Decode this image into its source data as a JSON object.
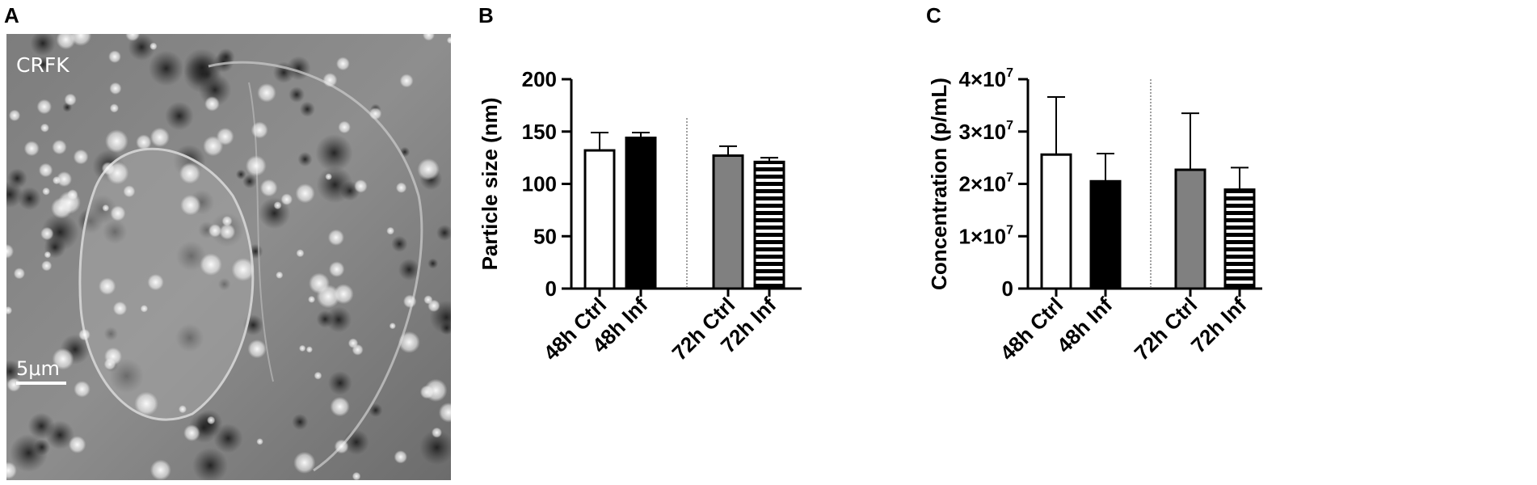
{
  "panels": {
    "a": {
      "letter": "A",
      "image_label": "CRFK",
      "scale_label": "5μm"
    },
    "b": {
      "letter": "B"
    },
    "c": {
      "letter": "C"
    }
  },
  "colors": {
    "ctrl48": "#ffffff",
    "inf48": "#000000",
    "ctrl72": "#808080",
    "inf72_stripe": "#000000",
    "axis": "#000000",
    "divider": "#808080"
  },
  "chart_data": [
    {
      "panel": "B",
      "type": "bar",
      "ylabel": "Particle size (nm)",
      "xlabel": "",
      "ylim": [
        0,
        200
      ],
      "yticks": [
        0,
        50,
        100,
        150,
        200
      ],
      "ytick_labels": [
        "0",
        "50",
        "100",
        "150",
        "200"
      ],
      "categories": [
        "48h Ctrl",
        "48h Inf",
        "72h Ctrl",
        "72h Inf"
      ],
      "values": [
        132,
        144,
        127,
        121
      ],
      "errors": [
        17,
        5,
        9,
        4
      ],
      "fills": [
        "white",
        "black",
        "gray",
        "striped"
      ],
      "divider_between": [
        1,
        2
      ]
    },
    {
      "panel": "C",
      "type": "bar",
      "ylabel": "Concentration (p/mL)",
      "xlabel": "",
      "ylim": [
        0,
        40000000
      ],
      "yticks": [
        0,
        10000000,
        20000000,
        30000000,
        40000000
      ],
      "ytick_labels": [
        {
          "mantissa": "0",
          "exp": ""
        },
        {
          "mantissa": "1×10",
          "exp": "7"
        },
        {
          "mantissa": "2×10",
          "exp": "7"
        },
        {
          "mantissa": "3×10",
          "exp": "7"
        },
        {
          "mantissa": "4×10",
          "exp": "7"
        }
      ],
      "categories": [
        "48h Ctrl",
        "48h Inf",
        "72h Ctrl",
        "72h Inf"
      ],
      "values": [
        25600000,
        20500000,
        22700000,
        18900000
      ],
      "errors": [
        11000000,
        5300000,
        10800000,
        4200000
      ],
      "fills": [
        "white",
        "black",
        "gray",
        "striped"
      ],
      "divider_between": [
        1,
        2
      ]
    }
  ]
}
